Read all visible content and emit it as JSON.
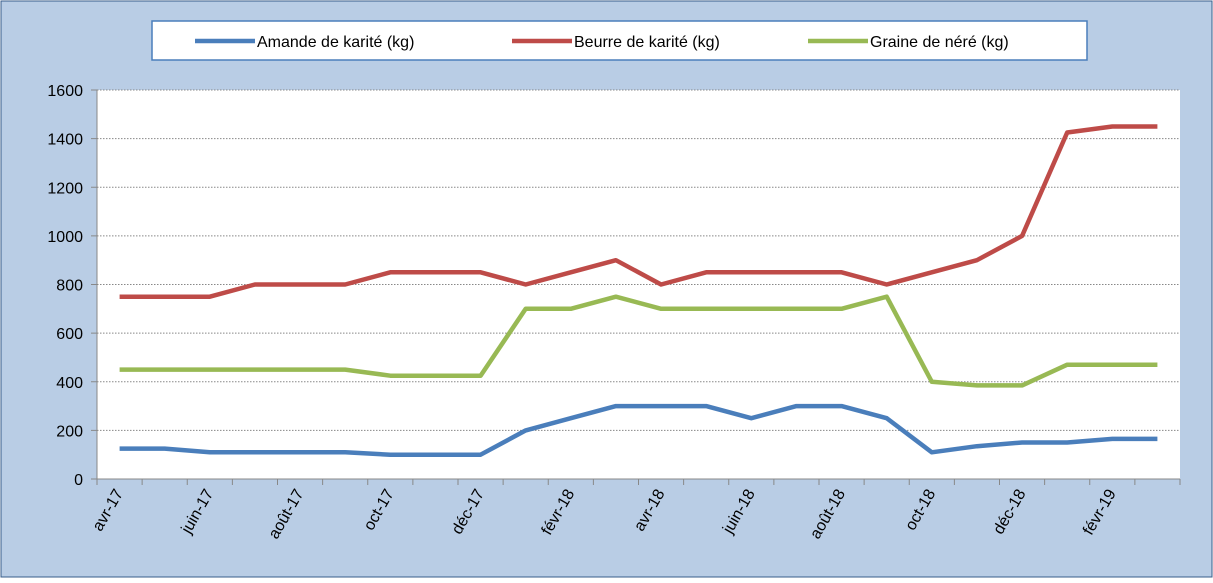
{
  "chart_data": {
    "type": "line",
    "categories": [
      "avr-17",
      null,
      "juin-17",
      null,
      "août-17",
      null,
      "oct-17",
      null,
      "déc-17",
      null,
      "févr-18",
      null,
      "avr-18",
      null,
      "juin-18",
      null,
      "août-18",
      null,
      "oct-18",
      null,
      "déc-18",
      null,
      "févr-19",
      null
    ],
    "series": [
      {
        "name": "Amande de karité (kg)",
        "color": "#4a7ebb",
        "values": [
          125,
          125,
          110,
          110,
          110,
          110,
          100,
          100,
          100,
          200,
          250,
          300,
          300,
          300,
          250,
          300,
          300,
          250,
          110,
          135,
          150,
          150,
          165,
          165
        ]
      },
      {
        "name": "Beurre de karité (kg)",
        "color": "#be4b48",
        "values": [
          750,
          750,
          750,
          800,
          800,
          800,
          850,
          850,
          850,
          800,
          850,
          900,
          800,
          850,
          850,
          850,
          850,
          800,
          850,
          900,
          1000,
          1425,
          1450,
          1450
        ]
      },
      {
        "name": "Graine de néré (kg)",
        "color": "#98b954",
        "values": [
          450,
          450,
          450,
          450,
          450,
          450,
          425,
          425,
          425,
          700,
          700,
          750,
          700,
          700,
          700,
          700,
          700,
          750,
          400,
          385,
          385,
          470,
          470,
          470
        ]
      }
    ],
    "ylim": [
      0,
      1600
    ],
    "yticks": [
      0,
      200,
      400,
      600,
      800,
      1000,
      1200,
      1400,
      1600
    ],
    "grid": true,
    "legend": "top"
  }
}
